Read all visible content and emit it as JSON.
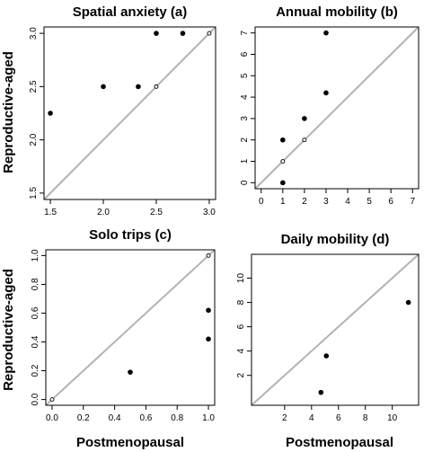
{
  "figure": {
    "ylabel_top": "Reproductive-aged",
    "ylabel_bottom": "Reproductive-aged",
    "xlabel_left": "Postmenopausal",
    "xlabel_right": "Postmenopausal"
  },
  "colors": {
    "points": "#000000",
    "reference_line": "#b3b3b3",
    "frame": "#000000"
  },
  "chart_data": [
    {
      "type": "scatter",
      "title": "Spatial anxiety (a)",
      "xlabel": "",
      "ylabel": "Reproductive-aged",
      "xlim": [
        1.5,
        3.0
      ],
      "ylim": [
        1.5,
        3.0
      ],
      "xticks": [
        "1.5",
        "2.0",
        "2.5",
        "3.0"
      ],
      "yticks": [
        "1.5",
        "2.0",
        "2.5",
        "3.0"
      ],
      "reference_line": "y = x",
      "points": [
        {
          "x": 1.5,
          "y": 2.25,
          "filled": true
        },
        {
          "x": 2.0,
          "y": 2.5,
          "filled": true
        },
        {
          "x": 2.33,
          "y": 2.5,
          "filled": true
        },
        {
          "x": 2.5,
          "y": 3.0,
          "filled": true
        },
        {
          "x": 2.75,
          "y": 3.0,
          "filled": true
        },
        {
          "x": 2.5,
          "y": 2.5,
          "filled": false
        },
        {
          "x": 3.0,
          "y": 3.0,
          "filled": false
        }
      ]
    },
    {
      "type": "scatter",
      "title": "Annual mobility (b)",
      "xlabel": "",
      "ylabel": "",
      "xlim": [
        0,
        7
      ],
      "ylim": [
        0,
        7
      ],
      "xticks": [
        "0",
        "1",
        "2",
        "3",
        "4",
        "5",
        "6",
        "7"
      ],
      "yticks": [
        "0",
        "1",
        "2",
        "3",
        "4",
        "5",
        "6",
        "7"
      ],
      "reference_line": "y = x",
      "points": [
        {
          "x": 1,
          "y": 0,
          "filled": true
        },
        {
          "x": 1,
          "y": 2,
          "filled": true
        },
        {
          "x": 2,
          "y": 3,
          "filled": true
        },
        {
          "x": 3,
          "y": 4.2,
          "filled": true
        },
        {
          "x": 3,
          "y": 7,
          "filled": true
        },
        {
          "x": 1,
          "y": 1,
          "filled": false
        },
        {
          "x": 2,
          "y": 2,
          "filled": false
        }
      ]
    },
    {
      "type": "scatter",
      "title": "Solo trips (c)",
      "xlabel": "Postmenopausal",
      "ylabel": "Reproductive-aged",
      "xlim": [
        0,
        1
      ],
      "ylim": [
        0,
        1
      ],
      "xticks": [
        "0.0",
        "0.2",
        "0.4",
        "0.6",
        "0.8",
        "1.0"
      ],
      "yticks": [
        "0.0",
        "0.2",
        "0.4",
        "0.6",
        "0.8",
        "1.0"
      ],
      "reference_line": "y = x",
      "points": [
        {
          "x": 0.5,
          "y": 0.19,
          "filled": true
        },
        {
          "x": 1.0,
          "y": 0.42,
          "filled": true
        },
        {
          "x": 1.0,
          "y": 0.62,
          "filled": true
        },
        {
          "x": 0.0,
          "y": 0.0,
          "filled": false
        },
        {
          "x": 1.0,
          "y": 1.0,
          "filled": false
        }
      ]
    },
    {
      "type": "scatter",
      "title": "Daily mobility (d)",
      "xlabel": "Postmenopausal",
      "ylabel": "",
      "xlim": [
        0,
        11.5
      ],
      "ylim": [
        0,
        11.5
      ],
      "xticks": [
        "2",
        "4",
        "6",
        "8",
        "10"
      ],
      "yticks": [
        "2",
        "4",
        "6",
        "8",
        "10"
      ],
      "xtick_values": [
        2,
        4,
        6,
        8,
        10
      ],
      "ytick_values": [
        2,
        4,
        6,
        8,
        10
      ],
      "reference_line": "y = x",
      "points": [
        {
          "x": 4.7,
          "y": 0.6,
          "filled": true
        },
        {
          "x": 5.1,
          "y": 3.6,
          "filled": true
        },
        {
          "x": 11.2,
          "y": 8.0,
          "filled": true
        }
      ]
    }
  ]
}
